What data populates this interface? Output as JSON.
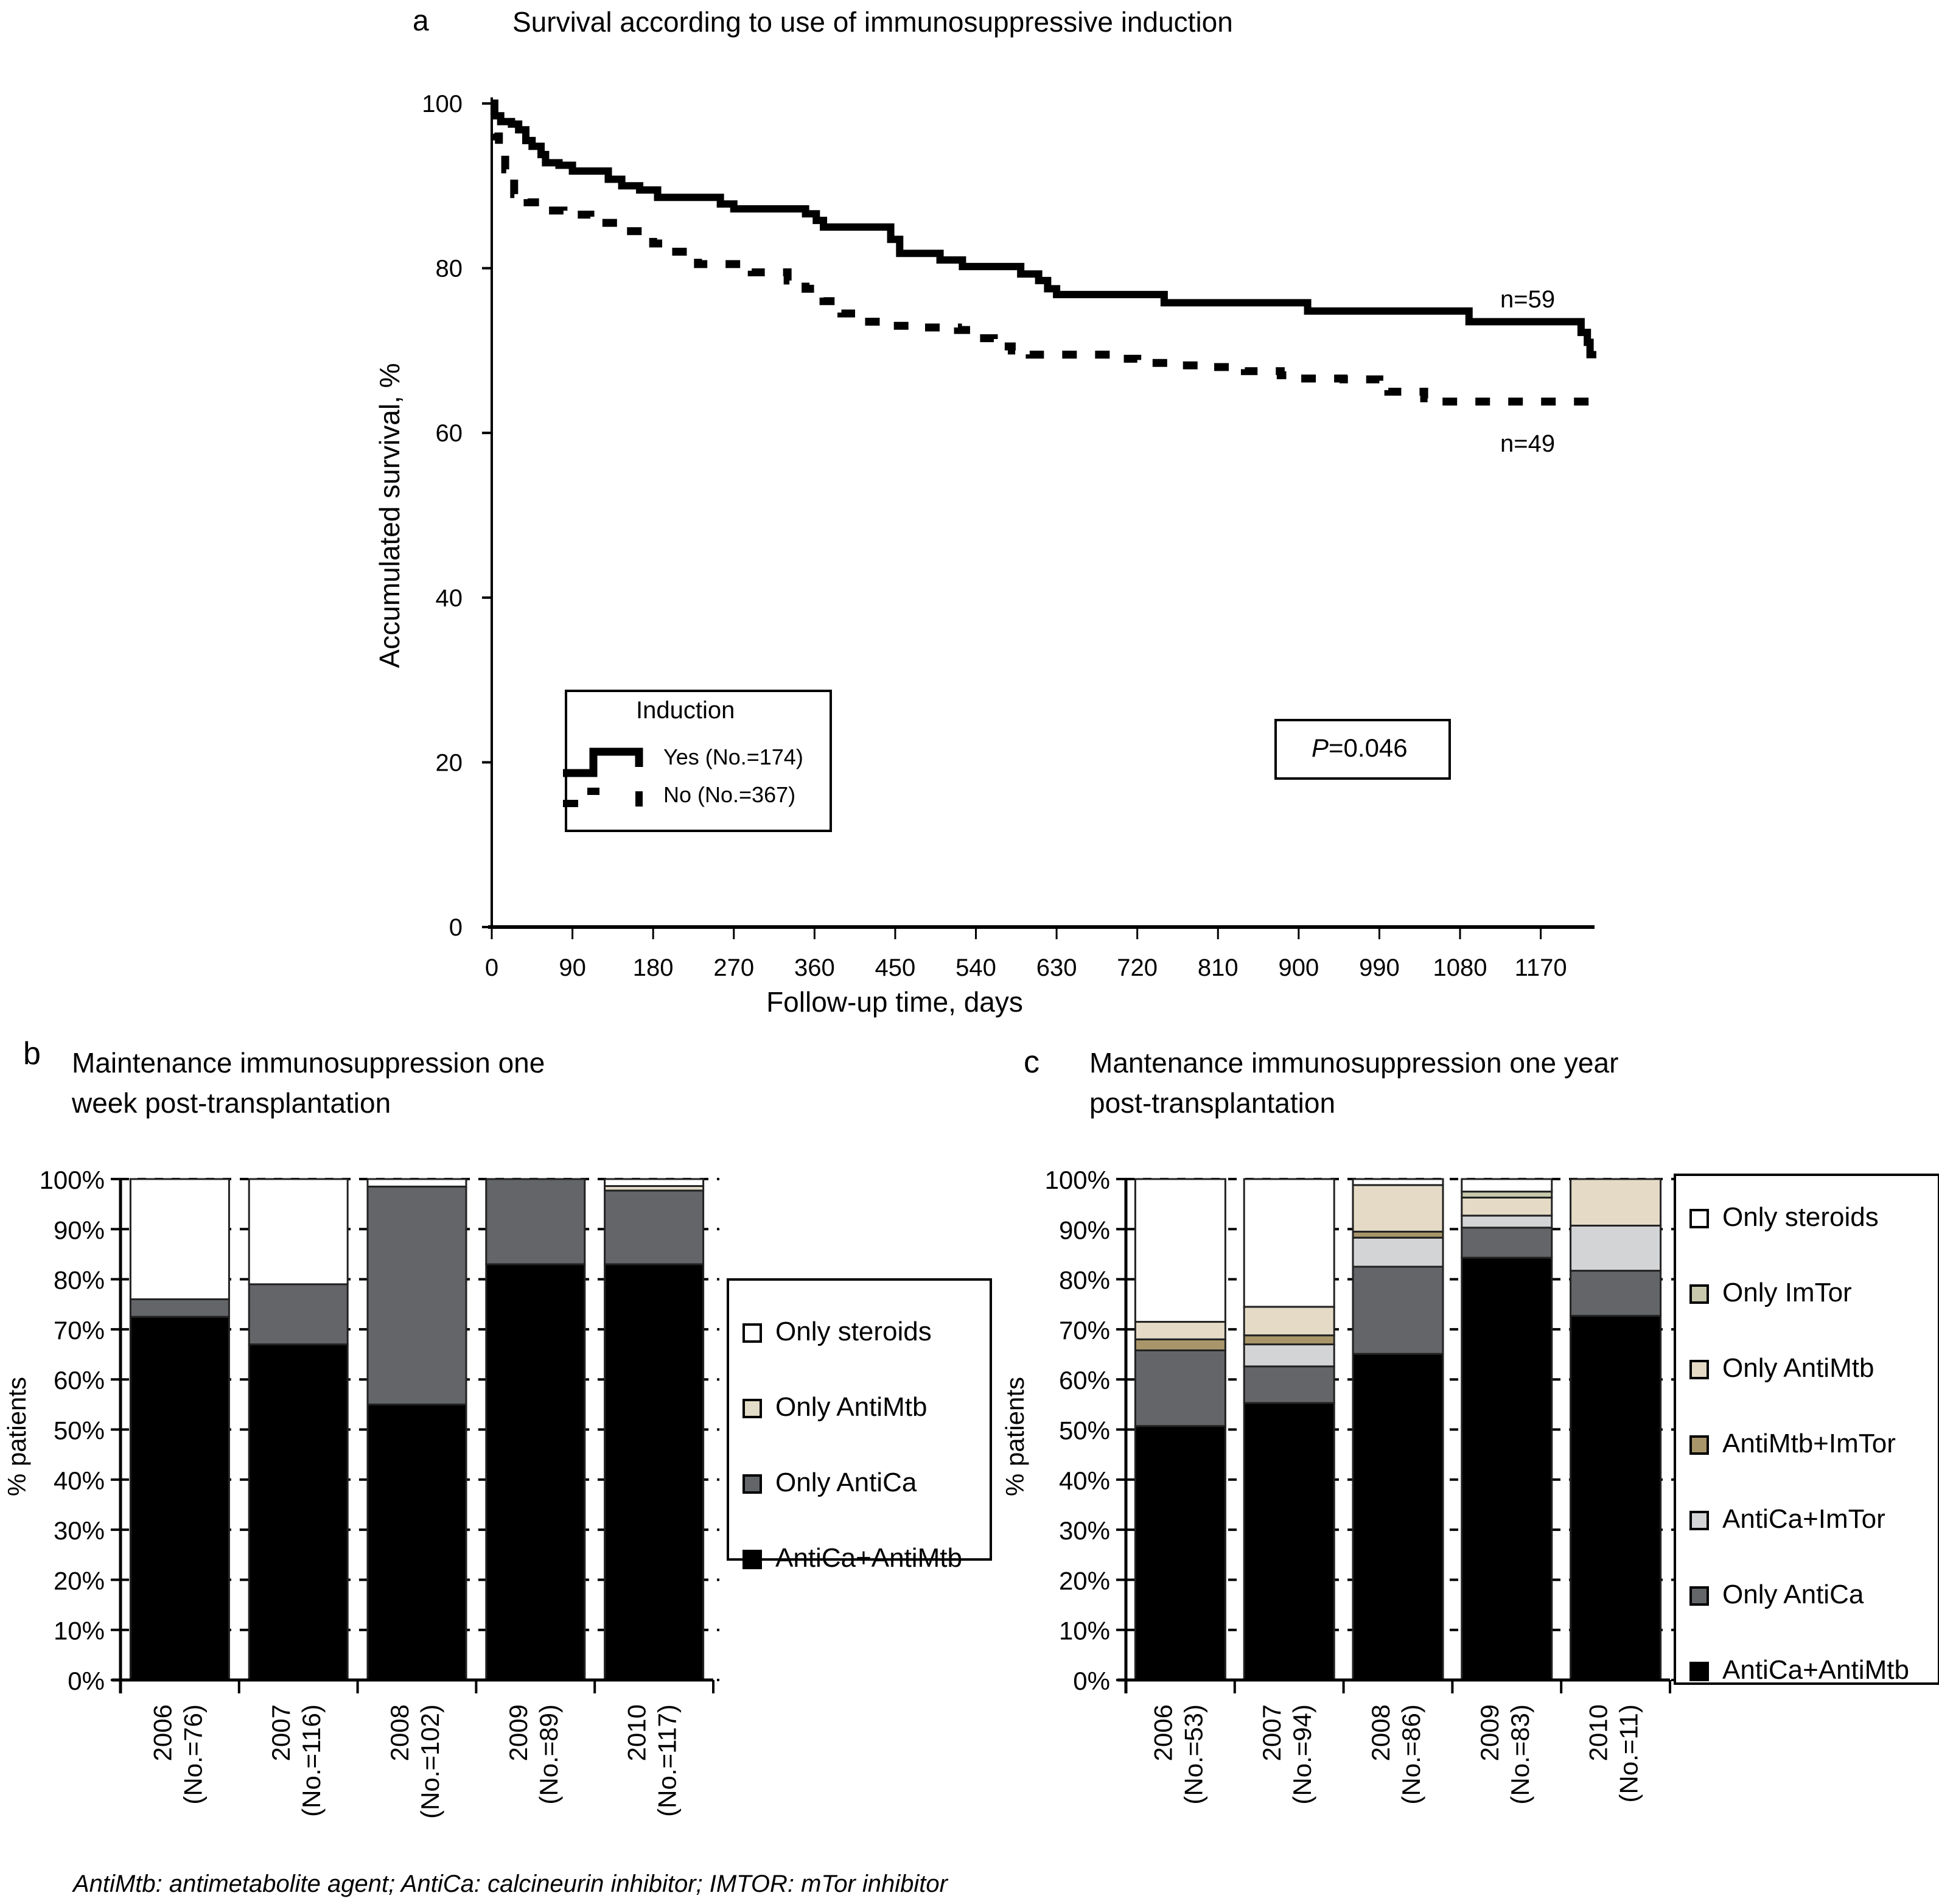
{
  "footnote": "AntiMtb: antimetabolite agent; AntiCa: calcineurin inhibitor; IMTOR: mTor inhibitor",
  "chart_data": [
    {
      "id": "a",
      "type": "line",
      "panel_letter": "a",
      "title": "Survival according to use of immunosuppressive induction",
      "xlabel": "Follow-up time, days",
      "ylabel": "Accumulated survival, %",
      "xlim": [
        0,
        1230
      ],
      "ylim": [
        0,
        100
      ],
      "xticks": [
        0,
        90,
        180,
        270,
        360,
        450,
        540,
        630,
        720,
        810,
        900,
        990,
        1080,
        1170
      ],
      "yticks": [
        0,
        20,
        40,
        60,
        80,
        100
      ],
      "grid": false,
      "legend": {
        "title": "Induction",
        "placement": "lower-left",
        "entries": [
          "Yes (No.=174)",
          "No (No.=367)"
        ]
      },
      "annotation": {
        "p_label": "P",
        "p_value": "=0.046"
      },
      "series": [
        {
          "name": "Yes (No.=174)",
          "style": "solid",
          "end_label": "n=59",
          "x": [
            0,
            3,
            10,
            22,
            30,
            38,
            45,
            55,
            60,
            75,
            90,
            120,
            130,
            145,
            165,
            185,
            230,
            255,
            270,
            340,
            350,
            362,
            370,
            440,
            445,
            455,
            485,
            500,
            525,
            580,
            590,
            610,
            620,
            630,
            740,
            750,
            900,
            910,
            1080,
            1090,
            1205,
            1215,
            1222,
            1225,
            1232
          ],
          "y": [
            100,
            98.5,
            97.8,
            97.5,
            96.8,
            95.5,
            94.8,
            93.8,
            92.8,
            92.5,
            91.8,
            91.8,
            90.8,
            90,
            89.5,
            88.6,
            88.6,
            87.8,
            87.2,
            87.2,
            86.6,
            85.8,
            85,
            85,
            83.5,
            81.8,
            81.8,
            81,
            80.2,
            80.2,
            79.3,
            78.5,
            77.5,
            76.8,
            76.8,
            75.8,
            75.8,
            74.8,
            74.8,
            73.5,
            73.5,
            72.2,
            71,
            69.5,
            69.5
          ]
        },
        {
          "name": "No (No.=367)",
          "style": "dashed",
          "end_label": "n=49",
          "x": [
            0,
            3,
            8,
            15,
            25,
            40,
            60,
            80,
            110,
            150,
            180,
            200,
            230,
            290,
            330,
            350,
            370,
            390,
            410,
            440,
            470,
            520,
            540,
            560,
            580,
            600,
            640,
            690,
            720,
            760,
            800,
            840,
            880,
            900,
            950,
            990,
            1000,
            1040,
            1060,
            1232
          ],
          "y": [
            100,
            96,
            95,
            92,
            89,
            88,
            87,
            86.5,
            85.5,
            84.5,
            83,
            82,
            80.5,
            79.5,
            78.5,
            77.5,
            76,
            74.5,
            73.5,
            73,
            72.8,
            72.5,
            71.5,
            70.5,
            70,
            69.5,
            69.5,
            69,
            68.5,
            68.2,
            68,
            67.5,
            67,
            66.6,
            66.5,
            66,
            65,
            64.2,
            63.8,
            63.8
          ]
        }
      ]
    },
    {
      "id": "b",
      "type": "bar",
      "stacked": true,
      "percent": true,
      "panel_letter": "b",
      "title_lines": [
        "Maintenance immunosuppression one",
        "week post-transplantation"
      ],
      "ylabel": "% patients",
      "ylim": [
        0,
        100
      ],
      "yticks": [
        "0%",
        "10%",
        "20%",
        "30%",
        "40%",
        "50%",
        "60%",
        "70%",
        "80%",
        "90%",
        "100%"
      ],
      "grid": "dashed",
      "legend_placement": "right",
      "categories": [
        {
          "year": "2006",
          "n": "(No.=76)"
        },
        {
          "year": "2007",
          "n": "(No.=116)"
        },
        {
          "year": "2008",
          "n": "(No.=102)"
        },
        {
          "year": "2009",
          "n": "(No.=89)"
        },
        {
          "year": "2010",
          "n": "(No.=117)"
        }
      ],
      "series": [
        {
          "name": "AntiCa+AntiMtb",
          "color": "#000000",
          "values": [
            72.5,
            67.0,
            55.0,
            83.0,
            83.0
          ]
        },
        {
          "name": "Only AntiCa",
          "color": "#636568",
          "values": [
            3.5,
            12.0,
            43.5,
            17.0,
            14.7
          ]
        },
        {
          "name": "Only AntiMtb",
          "color": "#e3dcc8",
          "values": [
            0,
            0,
            0,
            0,
            0.9
          ]
        },
        {
          "name": "Only steroids",
          "color": "#ffffff",
          "values": [
            24.0,
            21.0,
            1.5,
            0,
            1.4
          ]
        }
      ],
      "legend_order": [
        "Only steroids",
        "Only AntiMtb",
        "Only AntiCa",
        "AntiCa+AntiMtb"
      ]
    },
    {
      "id": "c",
      "type": "bar",
      "stacked": true,
      "percent": true,
      "panel_letter": "c",
      "title_lines": [
        "Mantenance immunosuppression one year",
        "post-transplantation"
      ],
      "ylabel": "% patients",
      "ylim": [
        0,
        100
      ],
      "yticks": [
        "0%",
        "10%",
        "20%",
        "30%",
        "40%",
        "50%",
        "60%",
        "70%",
        "80%",
        "90%",
        "100%"
      ],
      "grid": "dashed",
      "legend_placement": "right",
      "categories": [
        {
          "year": "2006",
          "n": "(No.=53)"
        },
        {
          "year": "2007",
          "n": "(No.=94)"
        },
        {
          "year": "2008",
          "n": "(No.=86)"
        },
        {
          "year": "2009",
          "n": "(No.=83)"
        },
        {
          "year": "2010",
          "n": "(No.=11)"
        }
      ],
      "series": [
        {
          "name": "AntiCa+AntiMtb",
          "color": "#000000",
          "values": [
            50.7,
            55.3,
            65.1,
            84.3,
            72.7
          ]
        },
        {
          "name": "Only AntiCa",
          "color": "#636568",
          "values": [
            15.1,
            7.3,
            17.4,
            6.0,
            9.0
          ]
        },
        {
          "name": "AntiCa+ImTor",
          "color": "#d3d4d6",
          "values": [
            0,
            4.4,
            5.8,
            2.4,
            9.0
          ]
        },
        {
          "name": "AntiMtb+ImTor",
          "color": "#a8966a",
          "values": [
            2.2,
            1.8,
            1.2,
            0,
            0
          ]
        },
        {
          "name": "Only AntiMtb",
          "color": "#e4dac6",
          "values": [
            3.5,
            5.7,
            9.3,
            3.6,
            9.3
          ]
        },
        {
          "name": "Only ImTor",
          "color": "#c8c9ac",
          "values": [
            0,
            0,
            0,
            1.2,
            0
          ]
        },
        {
          "name": "Only steroids",
          "color": "#ffffff",
          "values": [
            28.5,
            25.5,
            1.2,
            2.5,
            0
          ]
        }
      ],
      "legend_order": [
        "Only steroids",
        "Only ImTor",
        "Only AntiMtb",
        "AntiMtb+ImTor",
        "AntiCa+ImTor",
        "Only AntiCa",
        "AntiCa+AntiMtb"
      ]
    }
  ]
}
